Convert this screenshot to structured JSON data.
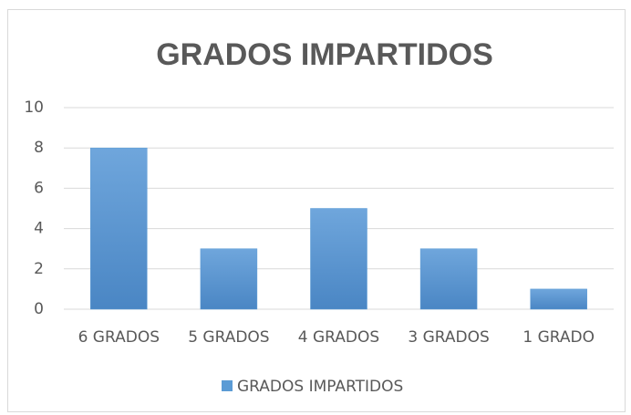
{
  "chart_data": {
    "type": "bar",
    "title": "GRADOS IMPARTIDOS",
    "categories": [
      "6 GRADOS",
      "5 GRADOS",
      "4 GRADOS",
      "3 GRADOS",
      "1 GRADO"
    ],
    "series": [
      {
        "name": "GRADOS IMPARTIDOS",
        "color": "#5b9bd5",
        "values": [
          8,
          3,
          5,
          3,
          1
        ]
      }
    ],
    "ylim": [
      0,
      10
    ],
    "yticks": [
      0,
      2,
      4,
      6,
      8,
      10
    ],
    "grid": true,
    "legend": "bottom"
  }
}
